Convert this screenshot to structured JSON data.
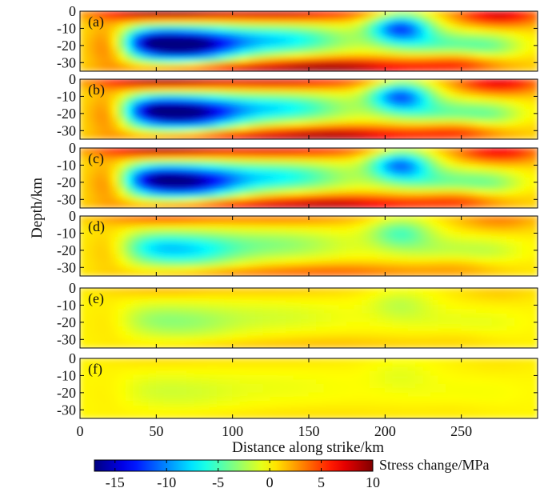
{
  "chart_data": {
    "type": "heatmap",
    "ylabel": "Depth/km",
    "xlabel": "Distance along strike/km",
    "xlim": [
      0,
      300
    ],
    "ylim": [
      -35,
      0
    ],
    "x_ticks": [
      0,
      50,
      100,
      150,
      200,
      250
    ],
    "y_ticks": [
      0,
      -10,
      -20,
      -30
    ],
    "colorbar": {
      "label": "Stress change/MPa",
      "range": [
        -17,
        10
      ],
      "ticks": [
        -15,
        -10,
        -5,
        0,
        5,
        10
      ],
      "colormap": "jet"
    },
    "panels": [
      {
        "label": "(a)",
        "scale": 1.0
      },
      {
        "label": "(b)",
        "scale": 0.95
      },
      {
        "label": "(c)",
        "scale": 0.9
      },
      {
        "label": "(d)",
        "scale": 0.42
      },
      {
        "label": "(e)",
        "scale": 0.16
      },
      {
        "label": "(f)",
        "scale": 0.07
      }
    ],
    "anomalies": [
      {
        "x": 70,
        "depth": -20,
        "sx": 24,
        "sd": 7,
        "amp": -17
      },
      {
        "x": 45,
        "depth": -18,
        "sx": 15,
        "sd": 6,
        "amp": -8
      },
      {
        "x": 130,
        "depth": -17,
        "sx": 32,
        "sd": 6,
        "amp": -8
      },
      {
        "x": 210,
        "depth": -10,
        "sx": 14,
        "sd": 6,
        "amp": -12
      },
      {
        "x": 235,
        "depth": -20,
        "sx": 22,
        "sd": 6,
        "amp": -5
      },
      {
        "x": 270,
        "depth": -22,
        "sx": 15,
        "sd": 6,
        "amp": -4
      },
      {
        "x": 50,
        "depth": 0,
        "sx": 28,
        "sd": 4,
        "amp": 9
      },
      {
        "x": 130,
        "depth": 0,
        "sx": 45,
        "sd": 4,
        "amp": 8
      },
      {
        "x": 275,
        "depth": -2,
        "sx": 20,
        "sd": 5,
        "amp": 7
      },
      {
        "x": 20,
        "depth": -20,
        "sx": 10,
        "sd": 8,
        "amp": 5
      },
      {
        "x": 170,
        "depth": -33,
        "sx": 40,
        "sd": 4,
        "amp": 8
      },
      {
        "x": 90,
        "depth": -34,
        "sx": 40,
        "sd": 3,
        "amp": 6
      },
      {
        "x": 250,
        "depth": -30,
        "sx": 25,
        "sd": 5,
        "amp": 5
      }
    ]
  }
}
